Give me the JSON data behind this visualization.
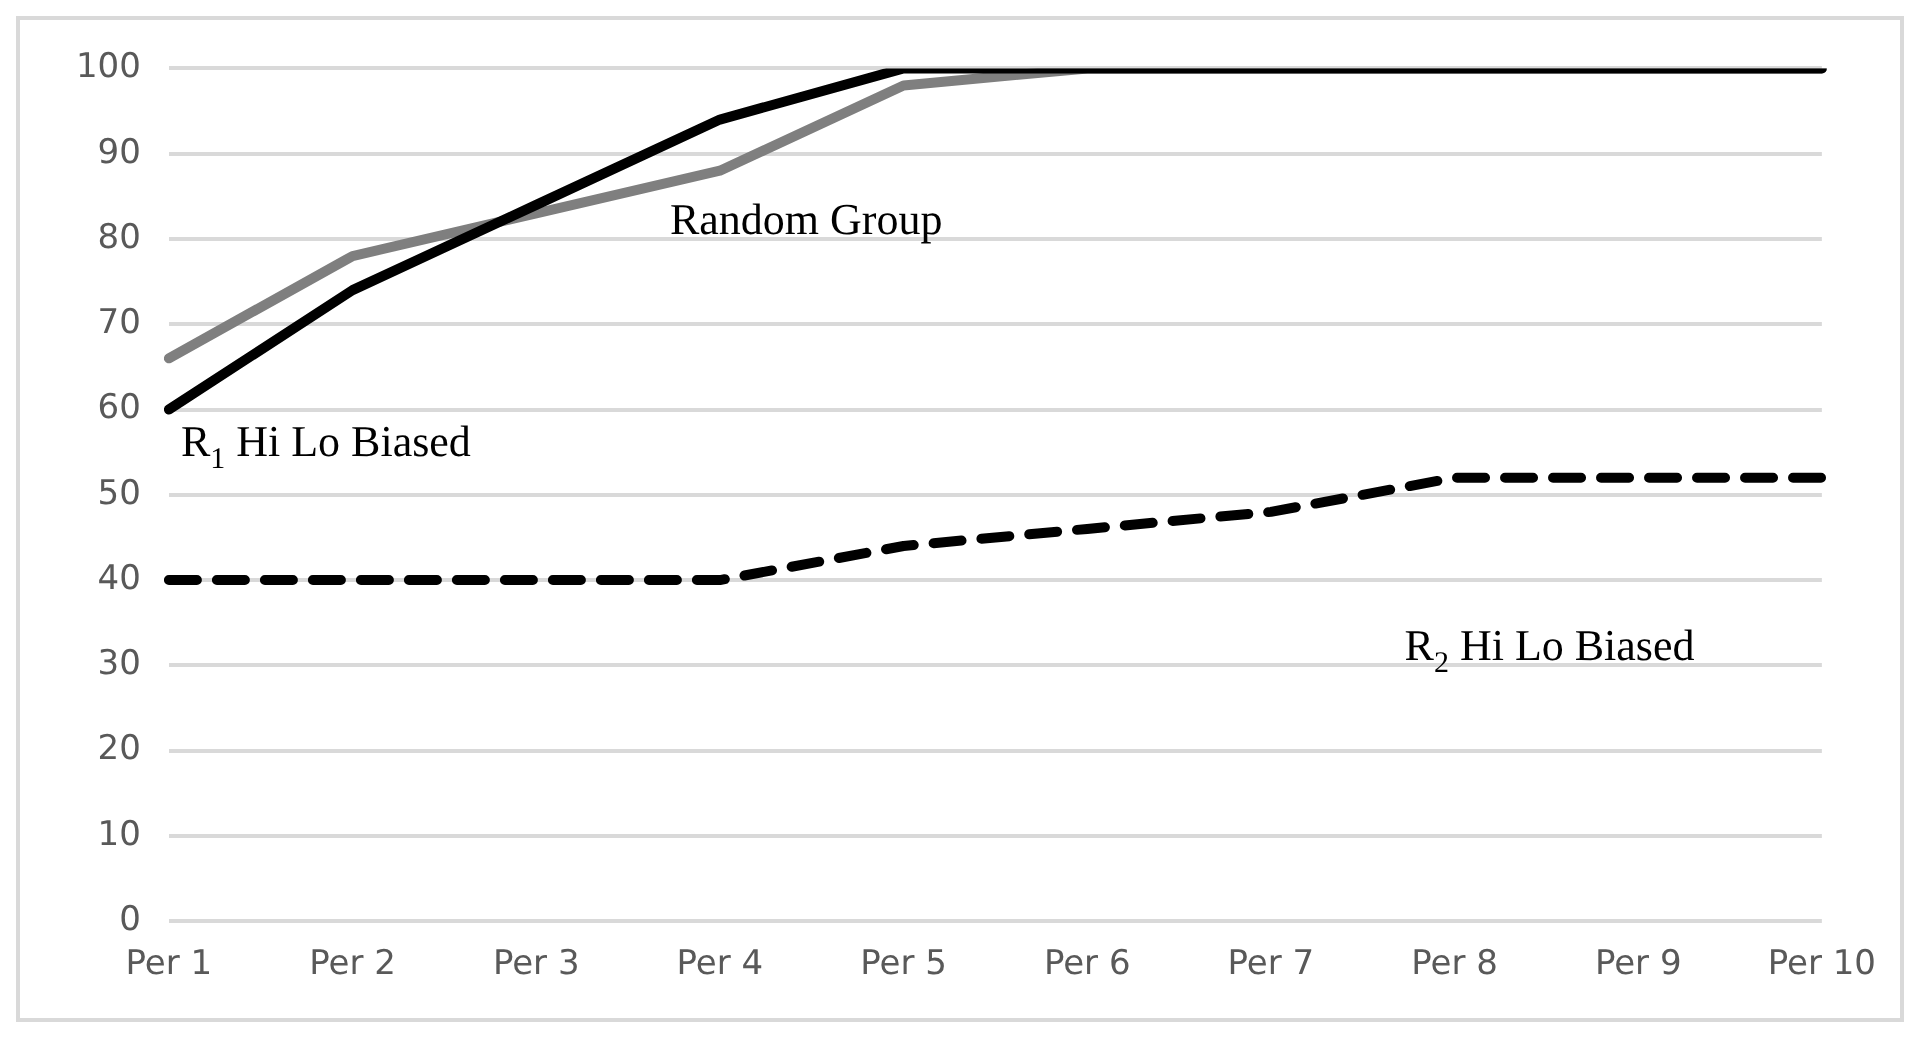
{
  "chart_data": {
    "type": "line",
    "categories": [
      "Per 1",
      "Per 2",
      "Per 3",
      "Per 4",
      "Per 5",
      "Per 6",
      "Per 7",
      "Per 8",
      "Per 9",
      "Per 10"
    ],
    "series": [
      {
        "name": "R$_{1}$ Hi Lo Biased",
        "color": "#000000",
        "line_style": "solid",
        "values": [
          60,
          74,
          84,
          94,
          100,
          100,
          100,
          100,
          100,
          100
        ]
      },
      {
        "name": "Random Group",
        "color": "#7f7f7f",
        "line_style": "solid",
        "values": [
          66,
          78,
          83,
          88,
          98,
          100,
          100,
          100,
          100,
          100
        ]
      },
      {
        "name": "R$_{2}$ Hi Lo Biased",
        "color": "#000000",
        "line_style": "dashed",
        "values": [
          40,
          40,
          40,
          40,
          44,
          46,
          48,
          52,
          52,
          52
        ]
      }
    ],
    "ylim": [
      0,
      100
    ],
    "yticks": [
      0,
      10,
      20,
      30,
      40,
      50,
      60,
      70,
      80,
      90,
      100
    ],
    "grid": "y",
    "legend": false,
    "marker": "none"
  }
}
